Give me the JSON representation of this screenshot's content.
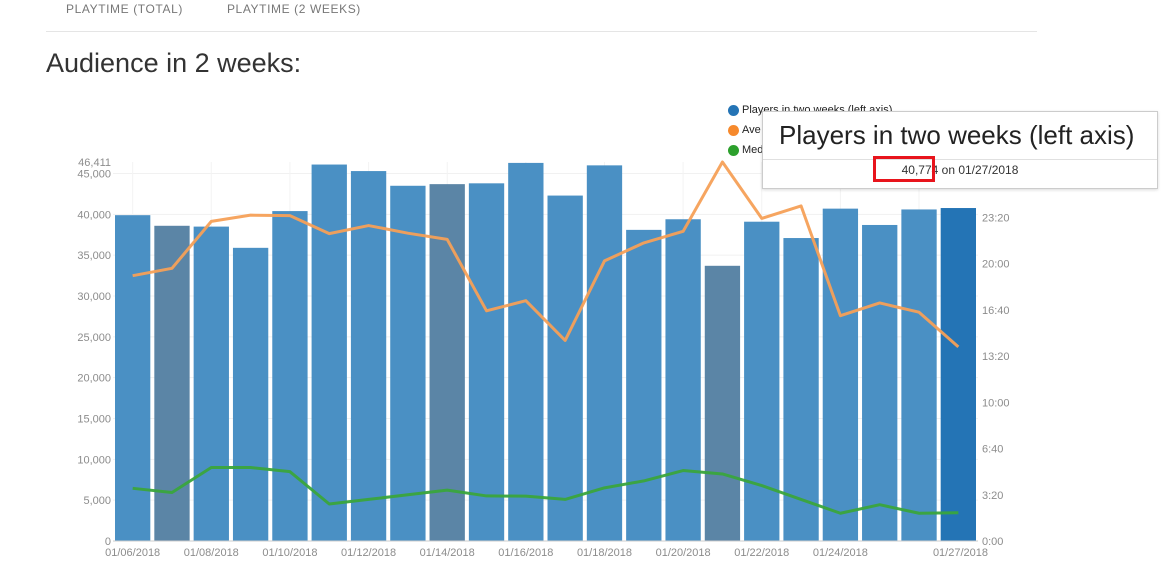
{
  "tabs": [
    {
      "label": "PLAYTIME (TOTAL)"
    },
    {
      "label": "PLAYTIME (2 WEEKS)"
    }
  ],
  "heading": "Audience in 2 weeks:",
  "colors": {
    "bar": "#4a90c4",
    "bar_dark": "#5b85a6",
    "bar_highlight": "#2474b5",
    "average_line": "#f5a057",
    "median_line": "#3aa53c",
    "highlight_border": "#e8141c"
  },
  "legend": [
    {
      "label": "Players in two weeks (left axis)",
      "color": "#2474b5"
    },
    {
      "label": "Ave",
      "color": "#f6892c"
    },
    {
      "label": "Med",
      "color": "#2ca02c"
    }
  ],
  "tooltip": {
    "title": "Players in two weeks (left axis)",
    "value": "40,774",
    "suffix": " on 01/27/2018"
  },
  "chart_data": {
    "type": "bar",
    "title": "",
    "x": [
      "01/06/2018",
      "01/07/2018",
      "01/08/2018",
      "01/09/2018",
      "01/10/2018",
      "01/11/2018",
      "01/12/2018",
      "01/13/2018",
      "01/14/2018",
      "01/15/2018",
      "01/16/2018",
      "01/17/2018",
      "01/18/2018",
      "01/19/2018",
      "01/20/2018",
      "01/21/2018",
      "01/22/2018",
      "01/23/2018",
      "01/24/2018",
      "01/25/2018",
      "01/26/2018",
      "01/27/2018"
    ],
    "x_tick_labels": [
      "01/06/2018",
      "01/08/2018",
      "01/10/2018",
      "01/12/2018",
      "01/14/2018",
      "01/16/2018",
      "01/18/2018",
      "01/20/2018",
      "01/22/2018",
      "01/24/2018",
      "01/27/2018"
    ],
    "series": [
      {
        "name": "Players in two weeks (left axis)",
        "axis": "left",
        "type": "bar",
        "values": [
          39900,
          38600,
          38500,
          35900,
          40400,
          46100,
          45300,
          43500,
          43700,
          43800,
          46300,
          42300,
          46000,
          38100,
          39400,
          33700,
          39100,
          37100,
          40700,
          38700,
          40600,
          40774
        ],
        "dark_bars": [
          "01/07/2018",
          "01/14/2018",
          "01/21/2018"
        ],
        "highlighted": "01/27/2018"
      },
      {
        "name": "Ave",
        "axis": "right",
        "type": "line",
        "values_minutes": [
          1148,
          1180,
          1383,
          1410,
          1408,
          1330,
          1365,
          1332,
          1305,
          996,
          1040,
          868,
          1212,
          1290,
          1340,
          1640,
          1396,
          1450,
          975,
          1030,
          990,
          840
        ]
      },
      {
        "name": "Med",
        "axis": "right",
        "type": "line",
        "values_minutes": [
          228,
          210,
          318,
          318,
          300,
          160,
          180,
          200,
          220,
          195,
          194,
          180,
          230,
          260,
          305,
          290,
          240,
          180,
          120,
          157,
          120,
          122
        ]
      }
    ],
    "left_axis": {
      "min": 0,
      "max": 46411,
      "ticks": [
        "0",
        "5,000",
        "10,000",
        "15,000",
        "20,000",
        "25,000",
        "30,000",
        "35,000",
        "40,000",
        "45,000"
      ],
      "max_label": "46,411"
    },
    "right_axis": {
      "min_minutes": 0,
      "max_minutes": 1640,
      "ticks": [
        "0:00",
        "3:20",
        "6:40",
        "10:00",
        "13:20",
        "16:40",
        "20:00",
        "23:20"
      ]
    }
  }
}
